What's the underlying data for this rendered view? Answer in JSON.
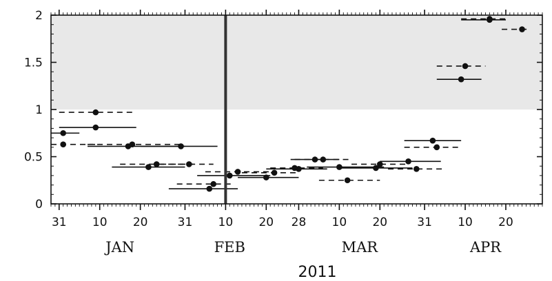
{
  "chart_data": {
    "type": "scatter",
    "title": "",
    "xlabel": "2011",
    "ylabel": "",
    "xlim": [
      "2010-12-29",
      "2011-04-29"
    ],
    "ylim": [
      0,
      2
    ],
    "y_ticks": [
      {
        "value": 0,
        "label": "0"
      },
      {
        "value": 0.5,
        "label": "0.5"
      },
      {
        "value": 1,
        "label": "1"
      },
      {
        "value": 1.5,
        "label": "1.5"
      },
      {
        "value": 2,
        "label": "2"
      }
    ],
    "x_ticks": [
      {
        "date": "2010-12-31",
        "label": "31"
      },
      {
        "date": "2011-01-10",
        "label": "10"
      },
      {
        "date": "2011-01-20",
        "label": "20"
      },
      {
        "date": "2011-01-31",
        "label": "31"
      },
      {
        "date": "2011-02-10",
        "label": "10"
      },
      {
        "date": "2011-02-20",
        "label": "20"
      },
      {
        "date": "2011-02-28",
        "label": "28"
      },
      {
        "date": "2011-03-10",
        "label": "10"
      },
      {
        "date": "2011-03-20",
        "label": "20"
      },
      {
        "date": "2011-03-31",
        "label": "31"
      },
      {
        "date": "2011-04-10",
        "label": "10"
      },
      {
        "date": "2011-04-20",
        "label": "20"
      }
    ],
    "month_labels": [
      {
        "date": "2011-01-15",
        "label": "JAN"
      },
      {
        "date": "2011-02-11",
        "label": "FEB"
      },
      {
        "date": "2011-03-15",
        "label": "MAR"
      },
      {
        "date": "2011-04-15",
        "label": "APR"
      }
    ],
    "shaded_band": {
      "y_from": 1,
      "y_to": 2,
      "color": "#e8e8e8"
    },
    "vertical_marker": {
      "date": "2011-02-10"
    },
    "series": [
      {
        "line_style": "solid",
        "points": [
          {
            "x": "2011-01-01",
            "y": 0.75,
            "x_from": "2010-12-29",
            "x_to": "2011-01-05"
          },
          {
            "x": "2011-01-09",
            "y": 0.81,
            "x_from": "2010-12-31",
            "x_to": "2011-01-19"
          },
          {
            "x": "2011-01-17",
            "y": 0.61,
            "x_from": "2011-01-07",
            "x_to": "2011-01-31"
          },
          {
            "x": "2011-01-22",
            "y": 0.39,
            "x_from": "2011-01-13",
            "x_to": "2011-01-31"
          },
          {
            "x": "2011-01-30",
            "y": 0.61,
            "x_from": "2011-01-20",
            "x_to": "2011-02-08"
          },
          {
            "x": "2011-02-06",
            "y": 0.16,
            "x_from": "2011-01-27",
            "x_to": "2011-02-13"
          },
          {
            "x": "2011-02-11",
            "y": 0.3,
            "x_from": "2011-02-03",
            "x_to": "2011-02-21"
          },
          {
            "x": "2011-02-20",
            "y": 0.28,
            "x_from": "2011-02-13",
            "x_to": "2011-02-28"
          },
          {
            "x": "2011-02-28",
            "y": 0.37,
            "x_from": "2011-02-20",
            "x_to": "2011-03-07"
          },
          {
            "x": "2011-03-04",
            "y": 0.47,
            "x_from": "2011-02-26",
            "x_to": "2011-03-10"
          },
          {
            "x": "2011-03-10",
            "y": 0.39,
            "x_from": "2011-03-02",
            "x_to": "2011-03-21"
          },
          {
            "x": "2011-03-19",
            "y": 0.38,
            "x_from": "2011-03-10",
            "x_to": "2011-03-28"
          },
          {
            "x": "2011-03-27",
            "y": 0.45,
            "x_from": "2011-03-20",
            "x_to": "2011-04-04"
          },
          {
            "x": "2011-04-02",
            "y": 0.67,
            "x_from": "2011-03-26",
            "x_to": "2011-04-09"
          },
          {
            "x": "2011-04-09",
            "y": 1.32,
            "x_from": "2011-04-03",
            "x_to": "2011-04-14"
          },
          {
            "x": "2011-04-16",
            "y": 1.95,
            "x_from": "2011-04-09",
            "x_to": "2011-04-20"
          }
        ]
      },
      {
        "line_style": "dashed",
        "points": [
          {
            "x": "2011-01-01",
            "y": 0.63,
            "x_from": "2010-12-29",
            "x_to": "2011-01-10"
          },
          {
            "x": "2011-01-09",
            "y": 0.97,
            "x_from": "2010-12-31",
            "x_to": "2011-01-19"
          },
          {
            "x": "2011-01-18",
            "y": 0.63,
            "x_from": "2011-01-07",
            "x_to": "2011-01-30"
          },
          {
            "x": "2011-01-24",
            "y": 0.42,
            "x_from": "2011-01-15",
            "x_to": "2011-02-03"
          },
          {
            "x": "2011-02-01",
            "y": 0.42,
            "x_from": "2011-01-25",
            "x_to": "2011-02-07"
          },
          {
            "x": "2011-02-07",
            "y": 0.21,
            "x_from": "2011-01-29",
            "x_to": "2011-02-12"
          },
          {
            "x": "2011-02-13",
            "y": 0.34,
            "x_from": "2011-02-05",
            "x_to": "2011-02-22"
          },
          {
            "x": "2011-02-22",
            "y": 0.33,
            "x_from": "2011-02-14",
            "x_to": "2011-02-28"
          },
          {
            "x": "2011-02-27",
            "y": 0.38,
            "x_from": "2011-02-21",
            "x_to": "2011-03-06"
          },
          {
            "x": "2011-03-06",
            "y": 0.47,
            "x_from": "2011-02-27",
            "x_to": "2011-03-13"
          },
          {
            "x": "2011-03-12",
            "y": 0.25,
            "x_from": "2011-03-05",
            "x_to": "2011-03-20"
          },
          {
            "x": "2011-03-20",
            "y": 0.42,
            "x_from": "2011-03-13",
            "x_to": "2011-03-27"
          },
          {
            "x": "2011-03-29",
            "y": 0.37,
            "x_from": "2011-03-22",
            "x_to": "2011-04-05"
          },
          {
            "x": "2011-04-03",
            "y": 0.6,
            "x_from": "2011-03-26",
            "x_to": "2011-04-09"
          },
          {
            "x": "2011-04-10",
            "y": 1.46,
            "x_from": "2011-04-03",
            "x_to": "2011-04-15"
          },
          {
            "x": "2011-04-16",
            "y": 1.96,
            "x_from": "2011-04-09",
            "x_to": "2011-04-20"
          },
          {
            "x": "2011-04-24",
            "y": 1.85,
            "x_from": "2011-04-19",
            "x_to": "2011-04-26"
          }
        ]
      }
    ],
    "grid": false,
    "legend": "none"
  }
}
